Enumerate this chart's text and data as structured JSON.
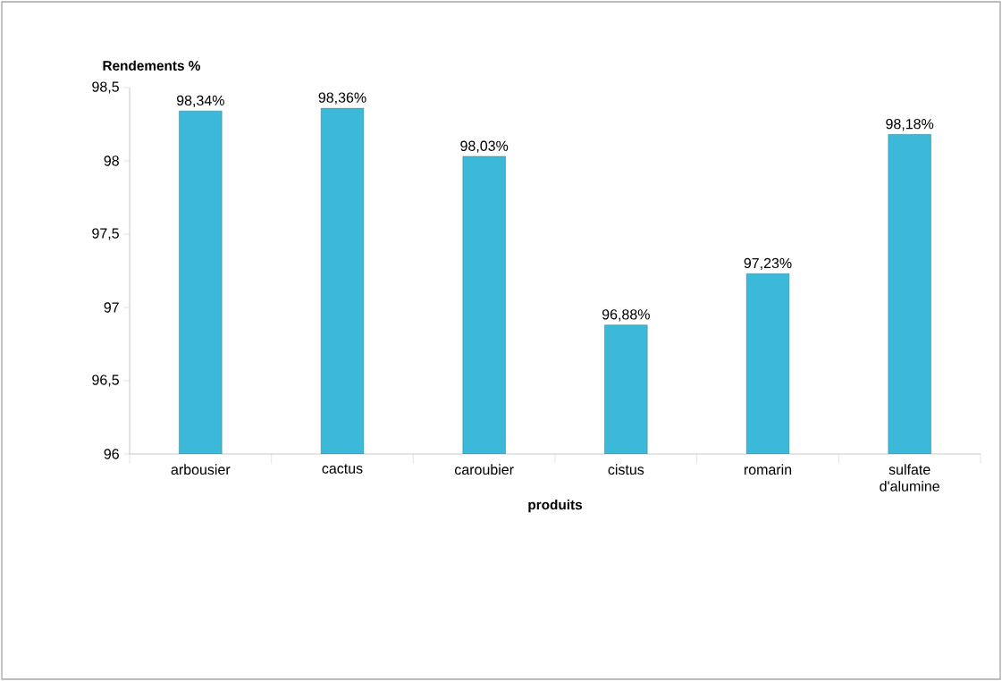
{
  "chart_data": {
    "type": "bar",
    "xlabel": "produits",
    "ylabel": "Rendements %",
    "categories": [
      "arbousier",
      "cactus",
      "caroubier",
      "cistus",
      "romarin",
      "sulfate d'alumine"
    ],
    "values": [
      98.34,
      98.36,
      98.03,
      96.88,
      97.23,
      98.18
    ],
    "value_labels": [
      "98,34%",
      "98,36%",
      "98,03%",
      "96,88%",
      "97,23%",
      "98,18%"
    ],
    "color": "#3cb9d9",
    "ylim": [
      96,
      98.5
    ],
    "yticks": [
      96,
      {
        "value": 96.5,
        "label": "96,5"
      },
      97,
      {
        "value": 97.5,
        "label": "97,5"
      },
      98,
      {
        "value": 98.5,
        "label": "98,5"
      }
    ],
    "grid": false
  }
}
